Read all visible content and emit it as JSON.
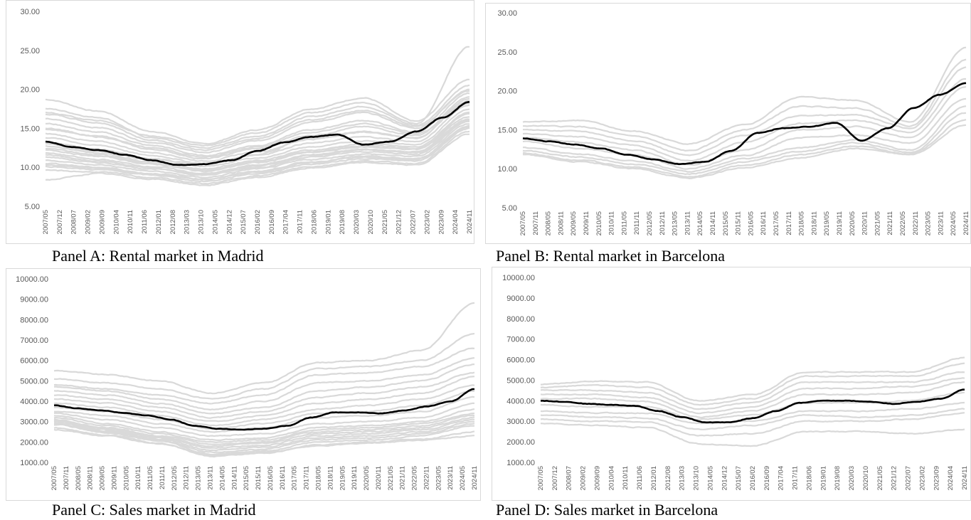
{
  "captions": {
    "a": "Panel A: Rental market in Madrid",
    "b": "Panel B: Rental market in Barcelona",
    "c": "Panel C: Sales market in Madrid",
    "d": "Panel D: Sales market in Barcelona"
  },
  "colors": {
    "district_lines": "#d9d9d9",
    "average_line": "#000000",
    "tick_text": "#595959",
    "border": "#d9d9d9"
  },
  "chart_data": [
    {
      "type": "line",
      "title": "",
      "ylim": [
        5,
        30
      ],
      "yticks": [
        "5.00",
        "10.00",
        "15.00",
        "20.00",
        "25.00",
        "30.00"
      ],
      "grid": false,
      "legend": "none",
      "xticks": [
        "2007/05",
        "2007/12",
        "2008/07",
        "2009/02",
        "2009/09",
        "2010/04",
        "2010/11",
        "2011/06",
        "2012/01",
        "2012/08",
        "2013/03",
        "2013/10",
        "2014/05",
        "2014/12",
        "2015/07",
        "2016/02",
        "2016/09",
        "2017/04",
        "2017/11",
        "2018/06",
        "2019/01",
        "2019/08",
        "2020/03",
        "2020/10",
        "2021/05",
        "2021/12",
        "2022/07",
        "2023/02",
        "2023/09",
        "2024/04",
        "2024/11"
      ],
      "gray_profiles": {
        "count": 24,
        "anchors": [
          [
            18.7,
            17.2,
            14.6,
            13.0,
            14.8,
            17.5,
            18.9,
            15.9,
            21.3
          ],
          [
            17.5,
            16.4,
            13.8,
            12.5,
            14.0,
            16.5,
            17.8,
            15.4,
            20.5
          ],
          [
            16.2,
            15.1,
            13.2,
            11.9,
            13.4,
            15.8,
            17.0,
            15.0,
            20.0
          ],
          [
            15.6,
            14.5,
            12.8,
            11.5,
            12.8,
            14.8,
            16.0,
            14.5,
            19.5
          ],
          [
            14.9,
            13.9,
            12.3,
            11.1,
            12.4,
            14.1,
            15.2,
            14.1,
            19.0
          ],
          [
            14.3,
            13.3,
            11.9,
            10.8,
            12.0,
            13.6,
            14.5,
            13.8,
            18.5
          ],
          [
            13.8,
            12.8,
            11.5,
            10.5,
            11.6,
            13.1,
            13.9,
            13.3,
            18.0
          ],
          [
            13.2,
            12.3,
            11.1,
            10.1,
            11.2,
            12.6,
            13.4,
            12.9,
            17.5
          ],
          [
            12.7,
            11.8,
            10.7,
            9.8,
            10.9,
            12.2,
            13.0,
            12.6,
            17.0
          ],
          [
            12.2,
            11.4,
            10.4,
            9.5,
            10.6,
            11.9,
            12.6,
            12.3,
            16.5
          ],
          [
            11.8,
            11.0,
            10.1,
            9.2,
            10.3,
            11.6,
            12.3,
            12.0,
            16.2
          ],
          [
            11.3,
            10.6,
            9.8,
            9.0,
            10.0,
            11.3,
            12.0,
            11.7,
            15.9
          ],
          [
            10.9,
            10.3,
            9.5,
            8.7,
            9.8,
            11.0,
            11.7,
            11.4,
            15.6
          ],
          [
            10.5,
            10.0,
            9.2,
            8.5,
            9.5,
            10.7,
            11.4,
            11.1,
            15.3
          ],
          [
            10.1,
            9.7,
            9.0,
            8.2,
            9.2,
            10.4,
            11.1,
            10.8,
            15.0
          ],
          [
            9.6,
            9.4,
            8.7,
            7.9,
            8.9,
            10.1,
            10.8,
            10.5,
            14.6
          ],
          [
            8.4,
            9.2,
            8.5,
            7.7,
            8.7,
            9.9,
            10.6,
            10.3,
            14.3
          ],
          [
            13.0,
            12.0,
            11.0,
            10.4,
            11.7,
            13.8,
            14.6,
            13.7,
            18.8
          ],
          [
            15.0,
            14.0,
            12.5,
            11.3,
            12.6,
            14.5,
            15.6,
            14.3,
            18.2
          ],
          [
            16.8,
            15.7,
            13.5,
            12.2,
            13.7,
            16.1,
            17.3,
            15.2,
            19.8
          ],
          [
            12.4,
            11.6,
            10.5,
            9.6,
            10.7,
            12.0,
            12.8,
            12.4,
            16.8
          ],
          [
            11.6,
            10.8,
            9.9,
            9.1,
            10.2,
            11.5,
            12.2,
            11.9,
            16.0
          ],
          [
            10.3,
            9.9,
            9.1,
            8.4,
            9.4,
            10.6,
            11.3,
            11.0,
            15.1
          ],
          [
            17.0,
            16.0,
            14.0,
            12.8,
            14.4,
            17.0,
            18.3,
            15.6,
            25.5
          ]
        ]
      },
      "average_series": {
        "name": "",
        "values": [
          13.3,
          12.6,
          12.2,
          11.6,
          10.9,
          10.3,
          10.4,
          10.9,
          12.1,
          13.2,
          13.9,
          14.2,
          12.9,
          13.3,
          14.6,
          16.4,
          18.4
        ]
      }
    },
    {
      "type": "line",
      "title": "",
      "ylim": [
        5,
        30
      ],
      "yticks": [
        "5.00",
        "10.00",
        "15.00",
        "20.00",
        "25.00",
        "30.00"
      ],
      "grid": false,
      "legend": "none",
      "xticks": [
        "2007/05",
        "2007/11",
        "2008/05",
        "2008/11",
        "2009/05",
        "2009/11",
        "2010/05",
        "2010/11",
        "2011/05",
        "2011/11",
        "2012/05",
        "2012/11",
        "2013/05",
        "2013/11",
        "2014/05",
        "2014/11",
        "2015/05",
        "2015/11",
        "2016/05",
        "2016/11",
        "2017/05",
        "2017/11",
        "2018/05",
        "2018/11",
        "2019/05",
        "2019/11",
        "2020/05",
        "2020/11",
        "2021/05",
        "2021/11",
        "2022/05",
        "2022/11",
        "2023/05",
        "2023/11",
        "2024/05",
        "2024/11"
      ],
      "gray_profiles": {
        "count": 10,
        "anchors": [
          [
            16.0,
            16.2,
            14.8,
            13.2,
            15.6,
            19.2,
            18.8,
            16.0,
            25.5
          ],
          [
            15.5,
            15.4,
            14.2,
            12.3,
            15.0,
            18.0,
            17.8,
            15.5,
            24.0
          ],
          [
            15.0,
            14.8,
            13.6,
            11.7,
            14.3,
            16.8,
            16.9,
            15.2,
            23.0
          ],
          [
            14.5,
            14.1,
            13.0,
            11.0,
            13.4,
            15.8,
            16.2,
            14.7,
            21.5
          ],
          [
            14.0,
            13.4,
            12.4,
            10.5,
            12.4,
            15.0,
            15.4,
            14.0,
            20.5
          ],
          [
            13.5,
            12.6,
            11.8,
            10.0,
            11.7,
            14.0,
            14.3,
            13.3,
            19.0
          ],
          [
            12.7,
            11.9,
            11.0,
            9.6,
            11.3,
            12.7,
            13.7,
            12.4,
            18.0
          ],
          [
            12.3,
            11.5,
            10.6,
            9.3,
            10.9,
            12.2,
            13.3,
            12.1,
            17.2
          ],
          [
            12.0,
            11.1,
            10.2,
            9.0,
            10.4,
            11.8,
            12.9,
            11.9,
            16.3
          ],
          [
            11.8,
            10.9,
            10.0,
            8.8,
            10.1,
            11.4,
            12.6,
            11.8,
            15.6
          ]
        ]
      },
      "average_series": {
        "name": "",
        "values": [
          13.9,
          13.5,
          13.1,
          12.6,
          11.8,
          11.2,
          10.6,
          10.9,
          12.3,
          14.6,
          15.2,
          15.4,
          15.9,
          13.6,
          15.2,
          17.8,
          19.5,
          21.0
        ]
      }
    },
    {
      "type": "line",
      "title": "",
      "ylim": [
        1000,
        10000
      ],
      "yticks": [
        "1000.00",
        "2000.00",
        "3000.00",
        "4000.00",
        "5000.00",
        "6000.00",
        "7000.00",
        "8000.00",
        "9000.00",
        "10000.00"
      ],
      "grid": false,
      "legend": "none",
      "xticks": [
        "2007/05",
        "2007/11",
        "2008/05",
        "2008/11",
        "2009/05",
        "2009/11",
        "2010/05",
        "2010/11",
        "2011/05",
        "2011/11",
        "2012/05",
        "2012/11",
        "2013/05",
        "2013/11",
        "2014/05",
        "2014/11",
        "2015/05",
        "2015/11",
        "2016/05",
        "2016/11",
        "2017/05",
        "2017/11",
        "2018/05",
        "2018/11",
        "2019/05",
        "2019/11",
        "2020/05",
        "2020/11",
        "2021/05",
        "2021/11",
        "2022/05",
        "2022/11",
        "2023/05",
        "2023/11",
        "2024/05",
        "2024/11"
      ],
      "gray_profiles": {
        "count": 21,
        "anchors": [
          [
            5500,
            5300,
            5000,
            4400,
            4900,
            5900,
            6000,
            6500,
            8800
          ],
          [
            5100,
            4900,
            4600,
            4100,
            4600,
            5600,
            5700,
            6000,
            7300
          ],
          [
            4800,
            4600,
            4300,
            3900,
            4300,
            5300,
            5400,
            5700,
            6600
          ],
          [
            4700,
            4500,
            4100,
            3600,
            4000,
            4900,
            5000,
            5300,
            6100
          ],
          [
            4500,
            4300,
            3900,
            3400,
            3700,
            4500,
            4700,
            5000,
            5800
          ],
          [
            4300,
            4100,
            3700,
            3200,
            3500,
            4200,
            4400,
            4700,
            5400
          ],
          [
            4100,
            3900,
            3500,
            3000,
            3300,
            3900,
            4100,
            4400,
            5200
          ],
          [
            3900,
            3700,
            3300,
            2800,
            3100,
            3600,
            3800,
            4100,
            4800
          ],
          [
            3700,
            3500,
            3100,
            2650,
            2900,
            3400,
            3500,
            3800,
            4500
          ],
          [
            3500,
            3300,
            2900,
            2500,
            2700,
            3200,
            3300,
            3500,
            4200
          ],
          [
            3400,
            3100,
            2700,
            2300,
            2400,
            2900,
            3000,
            3200,
            3900
          ],
          [
            3300,
            2900,
            2500,
            2100,
            2200,
            2700,
            2800,
            3000,
            3600
          ],
          [
            3200,
            2800,
            2400,
            2000,
            2100,
            2600,
            2700,
            2900,
            3400
          ],
          [
            3100,
            2700,
            2300,
            1900,
            2000,
            2500,
            2600,
            2800,
            3300
          ],
          [
            3050,
            2650,
            2250,
            1800,
            1950,
            2400,
            2500,
            2700,
            3200
          ],
          [
            3000,
            2600,
            2200,
            1700,
            1850,
            2300,
            2400,
            2600,
            3100
          ],
          [
            2950,
            2550,
            2150,
            1600,
            1750,
            2200,
            2300,
            2500,
            3000
          ],
          [
            2900,
            2500,
            2100,
            1500,
            1650,
            2100,
            2200,
            2400,
            2900
          ],
          [
            2850,
            2450,
            2050,
            1400,
            1550,
            2000,
            2100,
            2300,
            2800
          ],
          [
            2700,
            2350,
            1950,
            1300,
            1450,
            1850,
            2000,
            2150,
            2500
          ],
          [
            2600,
            2300,
            1900,
            1350,
            1500,
            1800,
            1950,
            2100,
            2300
          ]
        ]
      },
      "average_series": {
        "name": "",
        "values": [
          3800,
          3650,
          3550,
          3420,
          3300,
          3100,
          2800,
          2650,
          2600,
          2650,
          2800,
          3200,
          3450,
          3450,
          3400,
          3550,
          3750,
          4000,
          4600
        ]
      }
    },
    {
      "type": "line",
      "title": "",
      "ylim": [
        1000,
        10000
      ],
      "yticks": [
        "1000.00",
        "2000.00",
        "3000.00",
        "4000.00",
        "5000.00",
        "6000.00",
        "7000.00",
        "8000.00",
        "9000.00",
        "10000.00"
      ],
      "grid": false,
      "legend": "none",
      "xticks": [
        "2007/05",
        "2007/12",
        "2008/07",
        "2009/02",
        "2009/09",
        "2010/04",
        "2010/11",
        "2011/06",
        "2012/01",
        "2012/08",
        "2013/03",
        "2013/10",
        "2014/05",
        "2014/12",
        "2015/07",
        "2016/02",
        "2016/09",
        "2017/04",
        "2017/11",
        "2018/06",
        "2019/01",
        "2019/08",
        "2020/03",
        "2020/10",
        "2021/05",
        "2021/12",
        "2022/07",
        "2023/02",
        "2023/09",
        "2024/04",
        "2024/11"
      ],
      "gray_profiles": {
        "count": 10,
        "anchors": [
          [
            4800,
            4950,
            4900,
            4000,
            4300,
            5400,
            5400,
            5400,
            6100
          ],
          [
            4650,
            4750,
            4650,
            3800,
            4100,
            5200,
            5200,
            5200,
            5800
          ],
          [
            4500,
            4500,
            4400,
            3600,
            3900,
            4900,
            4900,
            4900,
            5400
          ],
          [
            4300,
            4300,
            4150,
            3400,
            3700,
            4600,
            4600,
            4700,
            5100
          ],
          [
            4100,
            4100,
            3950,
            3200,
            3500,
            4300,
            4300,
            4400,
            4900
          ],
          [
            3800,
            3700,
            3700,
            3100,
            3300,
            3900,
            3900,
            4000,
            4400
          ],
          [
            3500,
            3400,
            3400,
            2900,
            3000,
            3500,
            3500,
            3600,
            3900
          ],
          [
            3300,
            3200,
            3150,
            2600,
            2800,
            3300,
            3200,
            3300,
            3600
          ],
          [
            3100,
            3000,
            2950,
            2300,
            2400,
            3000,
            3000,
            3100,
            3400
          ],
          [
            2900,
            2800,
            2700,
            1900,
            1800,
            2500,
            2500,
            2400,
            2600
          ]
        ]
      },
      "average_series": {
        "name": "",
        "values": [
          4000,
          3950,
          3850,
          3800,
          3750,
          3500,
          3200,
          2950,
          2950,
          3150,
          3500,
          3900,
          4000,
          4000,
          3950,
          3850,
          3950,
          4100,
          4550
        ]
      }
    }
  ]
}
